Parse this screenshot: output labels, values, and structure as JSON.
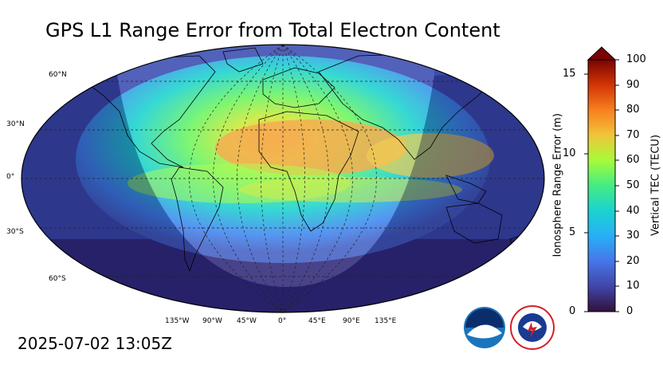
{
  "title": "GPS L1 Range Error from Total Electron Content",
  "timestamp": "2025-07-02 13:05Z",
  "map": {
    "lat_labels": [
      "60°N",
      "30°N",
      "0°",
      "30°S",
      "60°S"
    ],
    "lon_labels": [
      "135°W",
      "90°W",
      "45°W",
      "0°",
      "45°E",
      "90°E",
      "135°E"
    ]
  },
  "colorbar": {
    "left_label": "Ionosphere Range Error (m)",
    "right_label": "Vertical TEC (TECU)",
    "left_ticks": [
      "15",
      "10",
      "5",
      "0"
    ],
    "right_ticks": [
      "100",
      "90",
      "80",
      "70",
      "60",
      "50",
      "40",
      "30",
      "20",
      "10",
      "0"
    ],
    "colors": [
      "#30123b",
      "#3e3891",
      "#4460c4",
      "#3f87f0",
      "#28aff6",
      "#1ad3cf",
      "#2ee89c",
      "#6cf55f",
      "#a6fb3a",
      "#d3e835",
      "#f1c53a",
      "#fe9b2d",
      "#f76c1a",
      "#e4460a",
      "#c42903",
      "#9c1300",
      "#7a0403"
    ]
  },
  "logos": {
    "noaa_text": "NOAA",
    "nws_text": "NATIONAL WEATHER SERVICE"
  }
}
